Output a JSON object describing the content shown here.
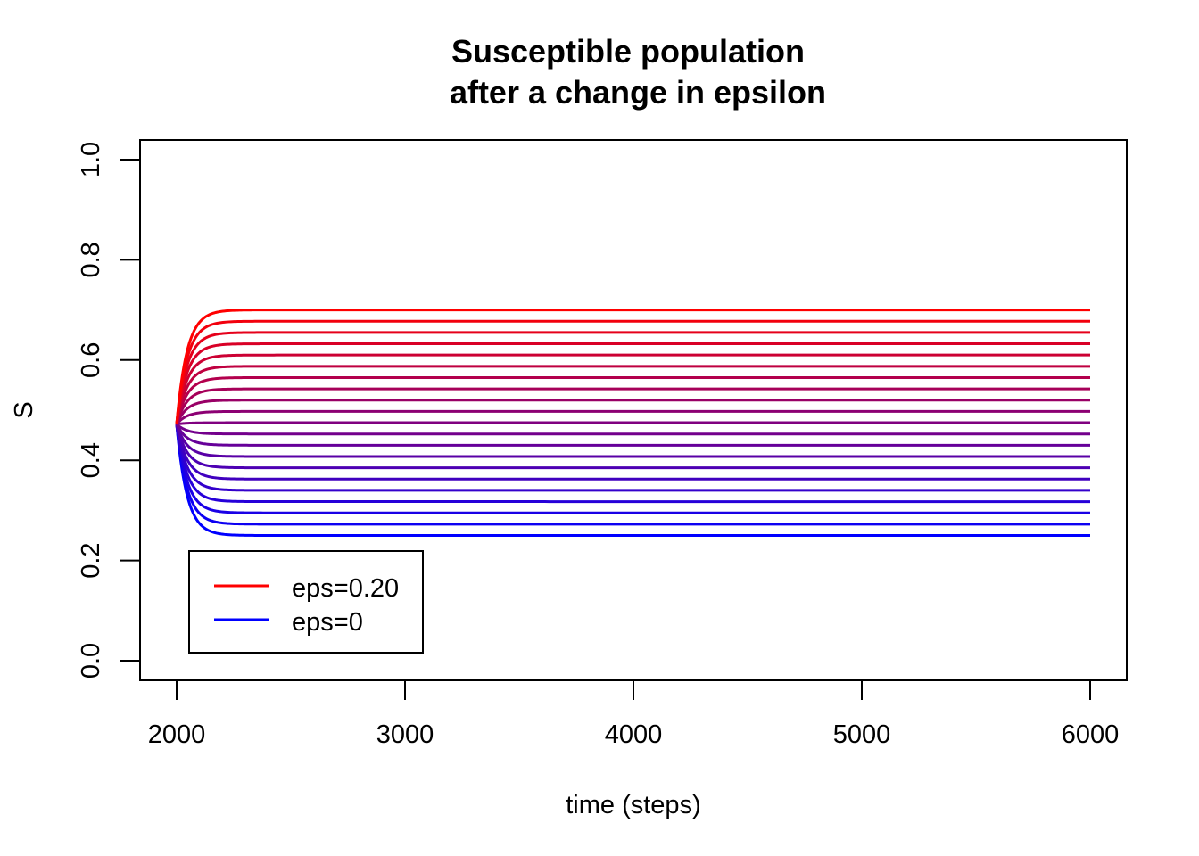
{
  "chart_data": {
    "type": "line",
    "title": "Susceptible population",
    "subtitle": "after a change in epsilon",
    "xlabel": "time (steps)",
    "ylabel": "S",
    "xlim": [
      2000,
      6000
    ],
    "ylim": [
      0.0,
      1.0
    ],
    "x_ticks": [
      2000,
      3000,
      4000,
      5000,
      6000
    ],
    "y_ticks": [
      0.0,
      0.2,
      0.4,
      0.6,
      0.8,
      1.0
    ],
    "x_tick_labels": [
      "2000",
      "3000",
      "4000",
      "5000",
      "6000"
    ],
    "y_tick_labels": [
      "0.0",
      "0.2",
      "0.4",
      "0.6",
      "0.8",
      "1.0"
    ],
    "grid": false,
    "legend_position": "bottom-left",
    "legend": [
      {
        "label": "eps=0.20",
        "color": "#ff0000"
      },
      {
        "label": "eps=0",
        "color": "#0000ff"
      }
    ],
    "color_start": "#0000ff",
    "color_end": "#ff0000",
    "series_count": 21,
    "x_start": 2000,
    "x_end": 6000,
    "s_initial": 0.472,
    "s_final_min": 0.25,
    "s_final_max": 0.7
  }
}
